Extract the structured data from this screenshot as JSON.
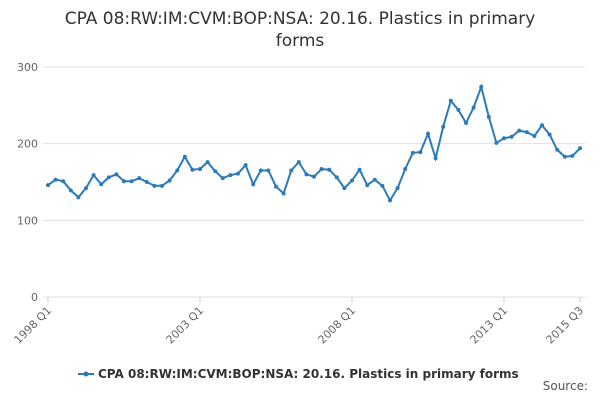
{
  "chart_data": {
    "type": "line",
    "title": "CPA 08:RW:IM:CVM:BOP:NSA: 20.16. Plastics in primary forms",
    "categories": [
      "1998 Q1",
      null,
      null,
      null,
      null,
      null,
      null,
      null,
      null,
      null,
      null,
      null,
      null,
      null,
      null,
      null,
      null,
      null,
      null,
      null,
      "2003 Q1",
      null,
      null,
      null,
      null,
      null,
      null,
      null,
      null,
      null,
      null,
      null,
      null,
      null,
      null,
      null,
      null,
      null,
      null,
      null,
      "2008 Q1",
      null,
      null,
      null,
      null,
      null,
      null,
      null,
      null,
      null,
      null,
      null,
      null,
      null,
      null,
      null,
      null,
      null,
      null,
      null,
      "2013 Q1",
      null,
      null,
      null,
      null,
      null,
      null,
      null,
      null,
      null,
      "2015 Q3"
    ],
    "series": [
      {
        "name": "CPA 08:RW:IM:CVM:BOP:NSA: 20.16. Plastics in primary forms",
        "color": "#2b7bb9",
        "values": [
          146,
          153,
          151,
          139,
          130,
          142,
          159,
          147,
          156,
          160,
          151,
          151,
          155,
          150,
          145,
          145,
          152,
          165,
          183,
          166,
          167,
          176,
          164,
          155,
          159,
          161,
          172,
          147,
          165,
          165,
          144,
          135,
          165,
          176,
          160,
          157,
          167,
          166,
          156,
          142,
          152,
          166,
          146,
          153,
          145,
          126,
          142,
          167,
          188,
          189,
          213,
          181,
          222,
          256,
          244,
          227,
          247,
          274,
          235,
          201,
          207,
          209,
          217,
          215,
          210,
          224,
          212,
          192,
          183,
          184,
          194
        ]
      }
    ],
    "ylim": [
      0,
      300
    ],
    "yticks": [
      0,
      100,
      200,
      300
    ],
    "grid": true,
    "source": "Source:"
  }
}
